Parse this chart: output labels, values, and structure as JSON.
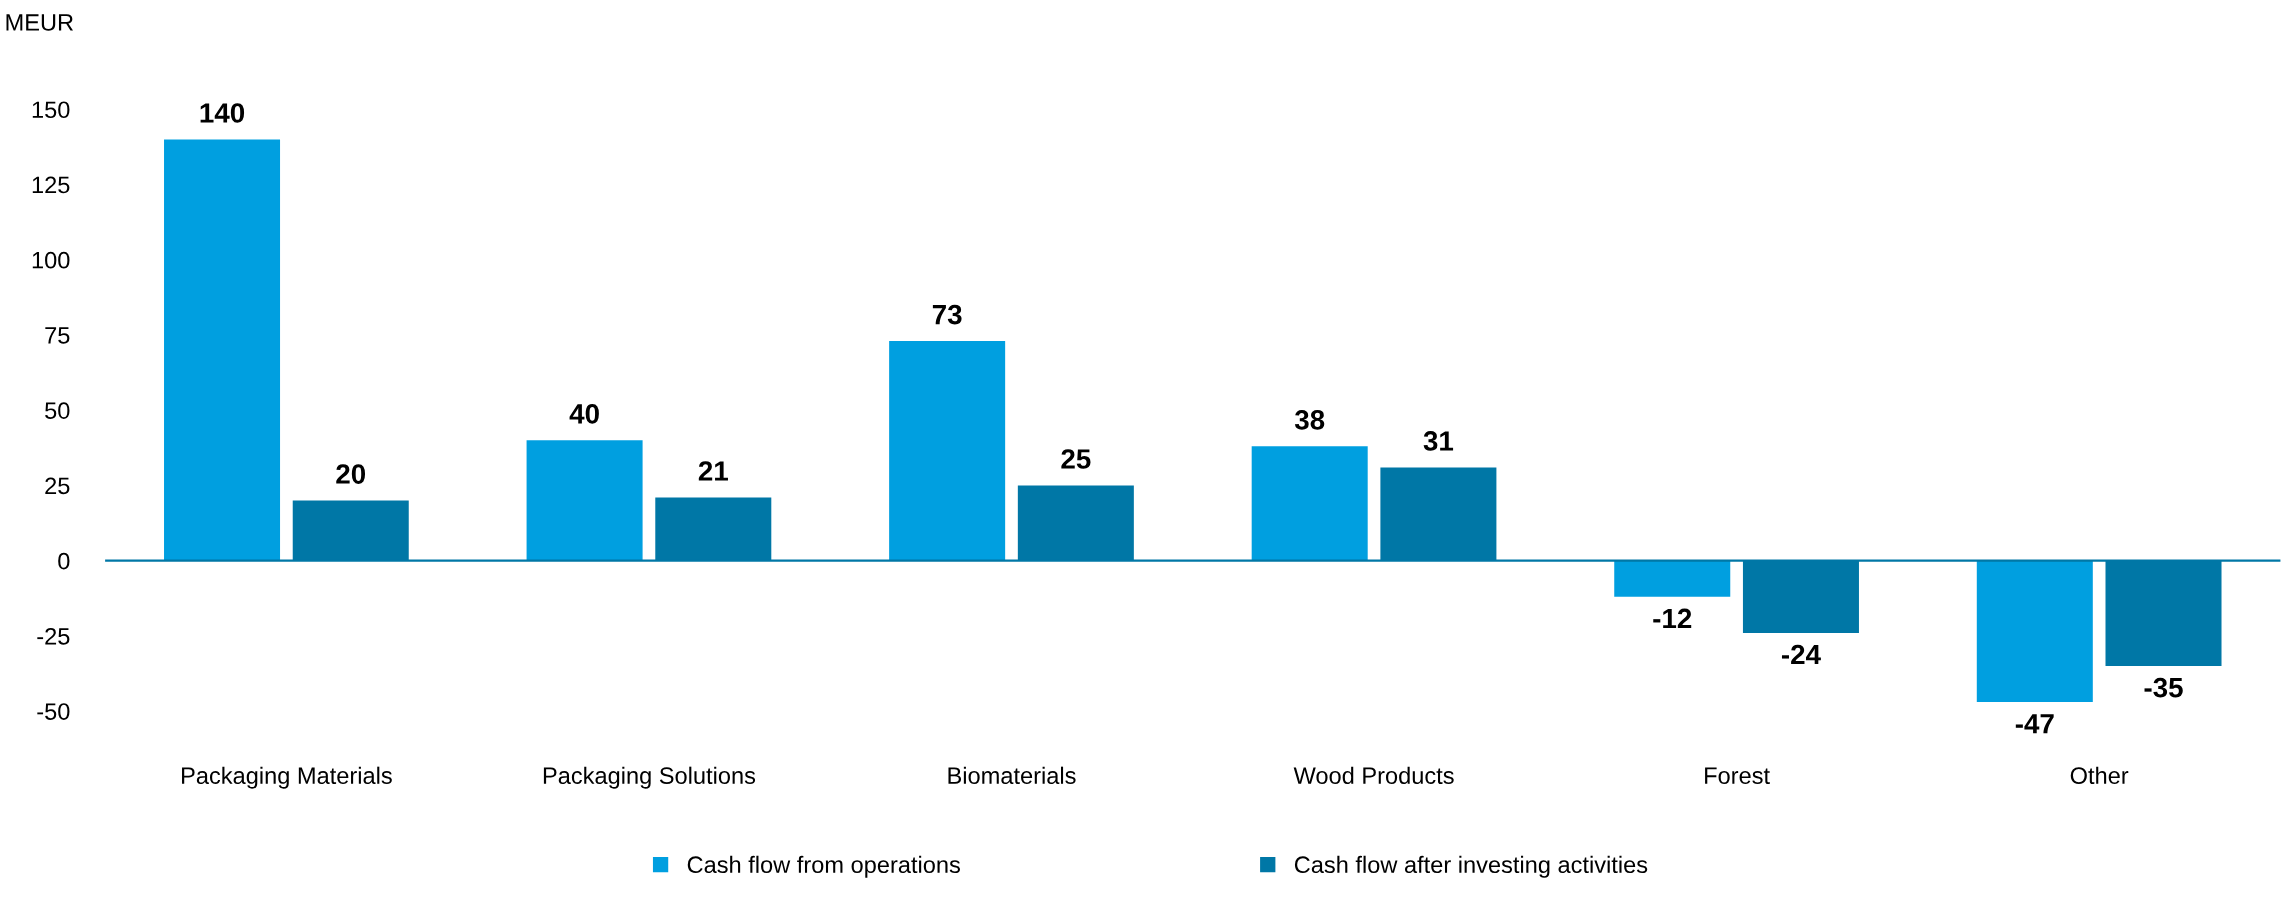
{
  "chart_data": {
    "type": "bar",
    "ylabel": "MEUR",
    "categories": [
      "Packaging Materials",
      "Packaging Solutions",
      "Biomaterials",
      "Wood Products",
      "Forest",
      "Other"
    ],
    "series": [
      {
        "name": "Cash flow from operations",
        "color": "#009fe0",
        "values": [
          140,
          40,
          73,
          38,
          -12,
          -47
        ]
      },
      {
        "name": "Cash flow after investing activities",
        "color": "#0077a6",
        "values": [
          20,
          21,
          25,
          31,
          -24,
          -35
        ]
      }
    ],
    "ylim": [
      -50,
      150
    ],
    "ref_lines": [
      {
        "axis": "y",
        "value": 0,
        "color": "#0077a6"
      }
    ],
    "yticks": [
      -50,
      -25,
      0,
      25,
      50,
      75,
      100,
      125,
      150
    ],
    "data_labels": true,
    "grid": false,
    "legend": "bottom"
  }
}
